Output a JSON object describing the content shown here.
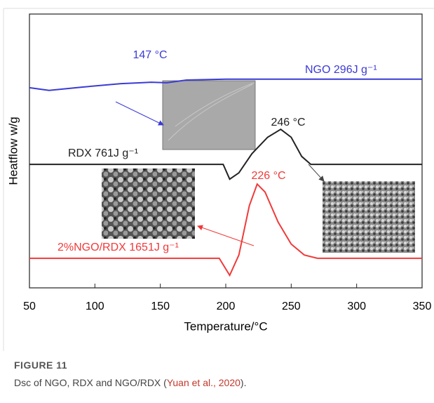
{
  "chart_data": {
    "type": "line",
    "xlabel": "Temperature/°C",
    "ylabel": "Heatflow w/g",
    "xlim": [
      50,
      350
    ],
    "xticks": [
      50,
      100,
      150,
      200,
      250,
      300,
      350
    ],
    "ylim": [
      0,
      100
    ],
    "series": [
      {
        "name": "NGO 296J g⁻¹",
        "color": "#3b3bd6",
        "x": [
          50,
          65,
          90,
          120,
          135,
          143,
          155,
          170,
          200,
          220,
          350
        ],
        "values": [
          73.1,
          72.1,
          73.3,
          74.6,
          74.9,
          75.1,
          74.9,
          75.9,
          76.2,
          76.2,
          76.2
        ]
      },
      {
        "name": "RDX 761J g⁻¹",
        "color": "#222222",
        "x": [
          50,
          198,
          203,
          210,
          220,
          232,
          242,
          250,
          258,
          265,
          350
        ],
        "values": [
          45.1,
          45.1,
          39.7,
          42,
          49,
          55,
          57.9,
          55,
          48,
          45.1,
          45.1
        ]
      },
      {
        "name": "2%NGO/RDX 1651J g⁻¹",
        "color": "#f03a3a",
        "x": [
          50,
          195,
          203,
          210,
          218,
          224,
          230,
          240,
          250,
          260,
          270,
          350
        ],
        "values": [
          10.8,
          10.8,
          4.6,
          12,
          30,
          37.9,
          35,
          24,
          16,
          12,
          10.8,
          10.8
        ]
      }
    ],
    "annotations": [
      "147 °C",
      "246 °C",
      "226 °C"
    ]
  },
  "caption": {
    "label": "FIGURE 11",
    "text": "Dsc of NGO, RDX and NGO/RDX (",
    "citation": "Yuan et al., 2020",
    "end": ")."
  }
}
